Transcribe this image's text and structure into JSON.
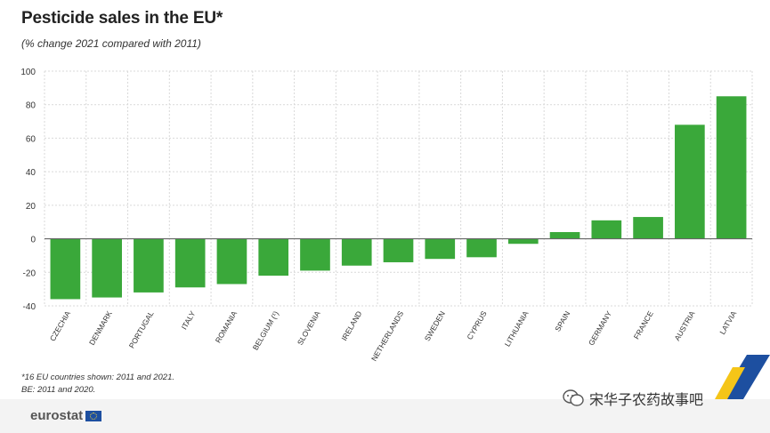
{
  "title": "Pesticide sales in the EU*",
  "subtitle": "(% change 2021 compared with 2011)",
  "notes": [
    "*16 EU countries shown: 2011 and 2021.",
    "BE: 2011 and 2020."
  ],
  "logo_text": "eurostat",
  "watermark_text": "宋华子农药故事吧",
  "colors": {
    "bar": "#3aa83a",
    "grid": "#d9d9d9",
    "zero": "#666666",
    "text": "#333333"
  },
  "chart_data": {
    "type": "bar",
    "title": "Pesticide sales in the EU*",
    "subtitle": "(% change 2021 compared with 2011)",
    "categories": [
      "CZECHIA",
      "DENMARK",
      "PORTUGAL",
      "ITALY",
      "ROMANIA",
      "BELGIUM (¹)",
      "SLOVENIA",
      "IRELAND",
      "NETHERLANDS",
      "SWEDEN",
      "CYPRUS",
      "LITHUANIA",
      "SPAIN",
      "GERMANY",
      "FRANCE",
      "AUSTRIA",
      "LATVIA"
    ],
    "values": [
      -36,
      -35,
      -32,
      -29,
      -27,
      -22,
      -19,
      -16,
      -14,
      -12,
      -11,
      -3,
      4,
      11,
      13,
      68,
      85
    ],
    "ylim": [
      -40,
      100
    ],
    "yticks": [
      -40,
      -20,
      0,
      20,
      40,
      60,
      80,
      100
    ],
    "xlabel": "",
    "ylabel": "",
    "grid": true
  }
}
